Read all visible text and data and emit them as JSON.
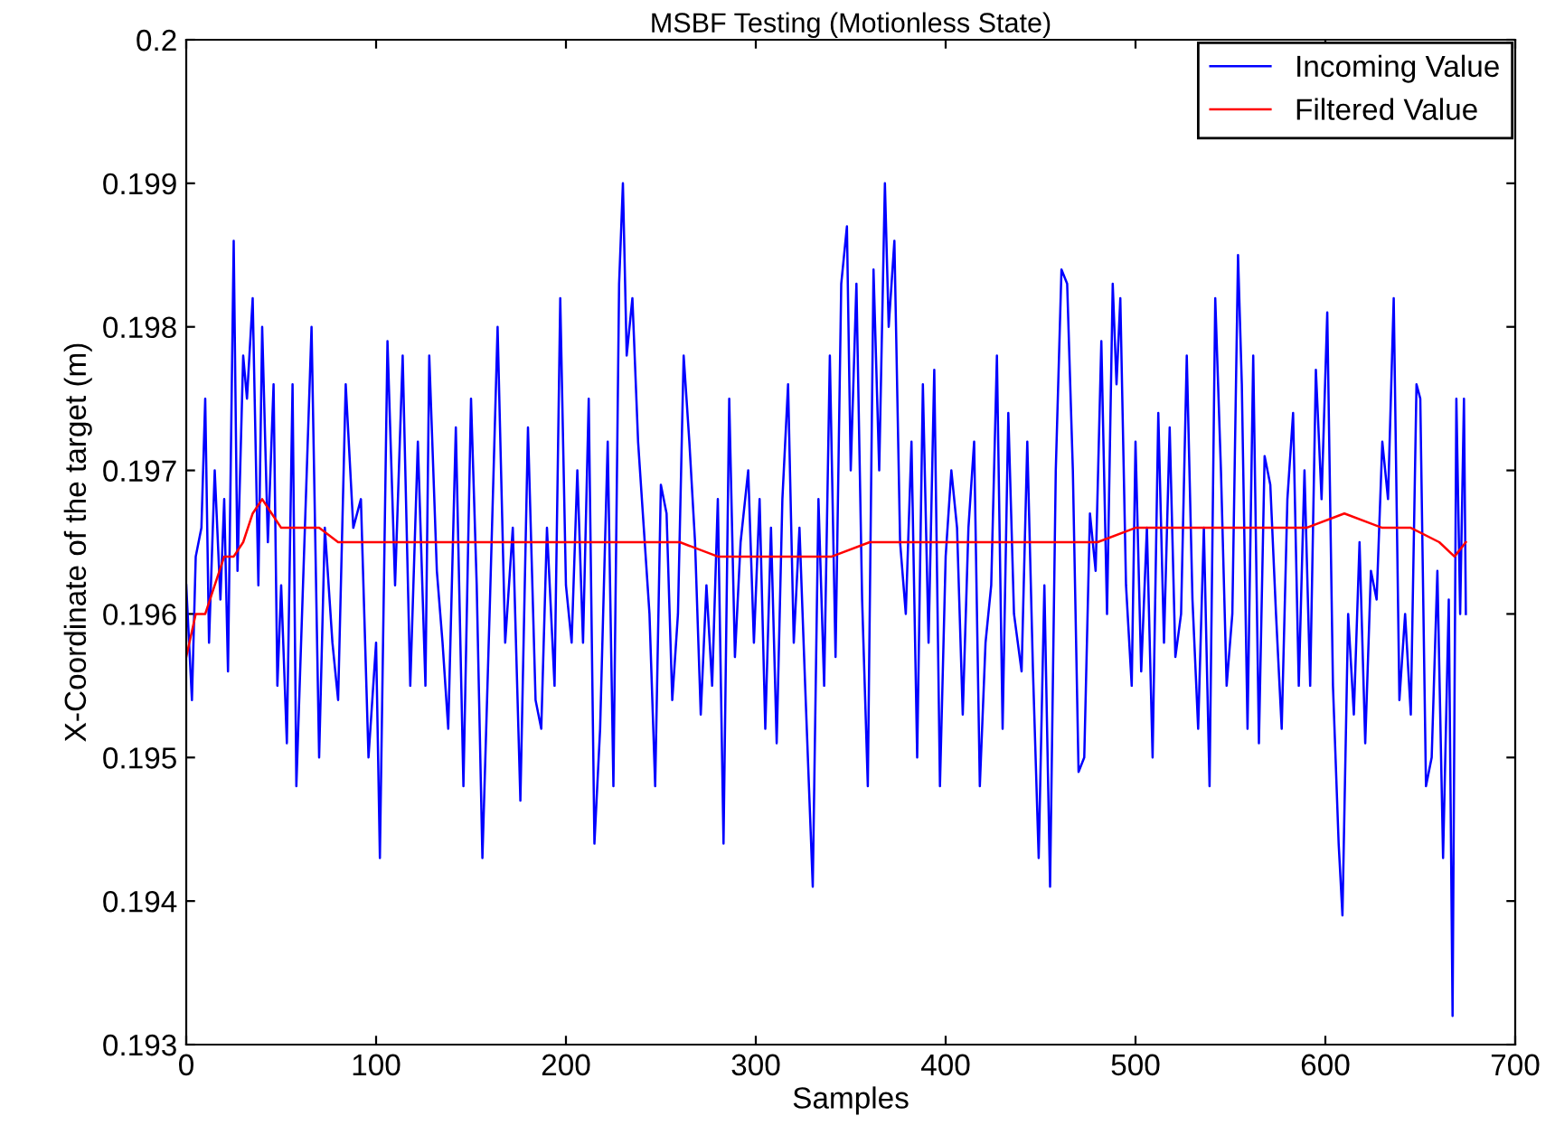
{
  "chart_data": {
    "type": "line",
    "title": "MSBF Testing (Motionless State)",
    "xlabel": "Samples",
    "ylabel": "X-Coordinate of the target (m)",
    "xlim": [
      0,
      700
    ],
    "xticks": [
      0,
      100,
      200,
      300,
      400,
      500,
      600,
      700
    ],
    "ylim": [
      0.193,
      0.2
    ],
    "yticks": [
      0.193,
      0.194,
      0.195,
      0.196,
      0.197,
      0.198,
      0.199,
      0.2
    ],
    "grid": false,
    "legend": "top right",
    "marker": "none",
    "line_style": "solid",
    "series": [
      {
        "name": "Incoming Value",
        "color": "#0000ff",
        "x": [
          0,
          3,
          5,
          8,
          10,
          12,
          15,
          18,
          20,
          22,
          25,
          27,
          30,
          32,
          35,
          38,
          40,
          43,
          46,
          48,
          50,
          53,
          56,
          58,
          62,
          66,
          70,
          73,
          77,
          80,
          84,
          88,
          92,
          96,
          100,
          102,
          106,
          110,
          114,
          118,
          122,
          126,
          128,
          132,
          135,
          138,
          142,
          146,
          150,
          153,
          156,
          160,
          164,
          168,
          172,
          176,
          180,
          184,
          187,
          190,
          194,
          197,
          200,
          203,
          206,
          209,
          212,
          215,
          218,
          222,
          225,
          228,
          230,
          232,
          235,
          238,
          241,
          244,
          247,
          250,
          253,
          256,
          259,
          262,
          265,
          268,
          271,
          274,
          277,
          280,
          283,
          286,
          289,
          292,
          296,
          299,
          302,
          305,
          308,
          311,
          314,
          317,
          320,
          323,
          326,
          330,
          333,
          336,
          339,
          342,
          345,
          348,
          350,
          353,
          356,
          359,
          362,
          365,
          368,
          370,
          373,
          376,
          379,
          382,
          385,
          388,
          391,
          394,
          397,
          400,
          403,
          406,
          409,
          412,
          415,
          418,
          421,
          424,
          427,
          430,
          433,
          436,
          440,
          443,
          446,
          449,
          452,
          455,
          458,
          461,
          464,
          467,
          470,
          473,
          476,
          479,
          482,
          485,
          488,
          490,
          492,
          495,
          498,
          500,
          503,
          506,
          509,
          512,
          515,
          518,
          521,
          524,
          527,
          530,
          533,
          536,
          539,
          542,
          545,
          548,
          551,
          554,
          556,
          559,
          562,
          565,
          568,
          571,
          574,
          577,
          580,
          583,
          586,
          589,
          592,
          595,
          598,
          601,
          604,
          607,
          609,
          612,
          615,
          618,
          621,
          624,
          627,
          630,
          633,
          636,
          639,
          642,
          645,
          648,
          650,
          653,
          656,
          659,
          662,
          665,
          667,
          669,
          671,
          673,
          674
        ],
        "values": [
          0.1962,
          0.1954,
          0.1964,
          0.1966,
          0.1975,
          0.1958,
          0.197,
          0.1961,
          0.1968,
          0.1956,
          0.1986,
          0.1963,
          0.1978,
          0.1975,
          0.1982,
          0.1962,
          0.198,
          0.1965,
          0.1976,
          0.1955,
          0.1962,
          0.1951,
          0.1976,
          0.1948,
          0.1964,
          0.198,
          0.195,
          0.1966,
          0.1958,
          0.1954,
          0.1976,
          0.1966,
          0.1968,
          0.195,
          0.1958,
          0.1943,
          0.1979,
          0.1962,
          0.1978,
          0.1955,
          0.1972,
          0.1955,
          0.1978,
          0.1963,
          0.1958,
          0.1952,
          0.1973,
          0.1948,
          0.1975,
          0.1962,
          0.1943,
          0.1961,
          0.198,
          0.1958,
          0.1966,
          0.1947,
          0.1973,
          0.1954,
          0.1952,
          0.1966,
          0.1955,
          0.1982,
          0.1962,
          0.1958,
          0.197,
          0.1958,
          0.1975,
          0.1944,
          0.1952,
          0.1972,
          0.1948,
          0.1983,
          0.199,
          0.1978,
          0.1982,
          0.1972,
          0.1966,
          0.196,
          0.1948,
          0.1969,
          0.1967,
          0.1954,
          0.196,
          0.1978,
          0.1972,
          0.1965,
          0.1953,
          0.1962,
          0.1955,
          0.1968,
          0.1944,
          0.1975,
          0.1957,
          0.1965,
          0.197,
          0.1958,
          0.1968,
          0.1952,
          0.1966,
          0.1951,
          0.1968,
          0.1976,
          0.1958,
          0.1966,
          0.1955,
          0.1941,
          0.1968,
          0.1955,
          0.1978,
          0.1957,
          0.1983,
          0.1987,
          0.197,
          0.1983,
          0.1961,
          0.1948,
          0.1984,
          0.197,
          0.199,
          0.198,
          0.1986,
          0.1965,
          0.196,
          0.1972,
          0.195,
          0.1976,
          0.1958,
          0.1977,
          0.1948,
          0.1964,
          0.197,
          0.1966,
          0.1953,
          0.1966,
          0.1972,
          0.1948,
          0.1958,
          0.1962,
          0.1978,
          0.1952,
          0.1974,
          0.196,
          0.1956,
          0.1972,
          0.1956,
          0.1943,
          0.1962,
          0.1941,
          0.197,
          0.1984,
          0.1983,
          0.197,
          0.1949,
          0.195,
          0.1967,
          0.1963,
          0.1979,
          0.196,
          0.1983,
          0.1976,
          0.1982,
          0.1962,
          0.1955,
          0.1972,
          0.1956,
          0.1966,
          0.195,
          0.1974,
          0.1958,
          0.1973,
          0.1957,
          0.196,
          0.1978,
          0.1961,
          0.1952,
          0.1966,
          0.1948,
          0.1982,
          0.197,
          0.1955,
          0.196,
          0.1985,
          0.1976,
          0.1952,
          0.1978,
          0.1951,
          0.1971,
          0.1969,
          0.196,
          0.1952,
          0.1968,
          0.1974,
          0.1955,
          0.197,
          0.1955,
          0.1977,
          0.1968,
          0.1981,
          0.1955,
          0.1944,
          0.1939,
          0.196,
          0.1953,
          0.1965,
          0.1951,
          0.1963,
          0.1961,
          0.1972,
          0.1968,
          0.1982,
          0.1954,
          0.196,
          0.1953,
          0.1976,
          0.1975,
          0.1948,
          0.195,
          0.1963,
          0.1943,
          0.1961,
          0.1932,
          0.1975,
          0.196,
          0.1975,
          0.196
        ]
      },
      {
        "name": "Filtered Value",
        "color": "#ff0000",
        "x": [
          0,
          5,
          10,
          15,
          20,
          25,
          30,
          35,
          40,
          45,
          50,
          60,
          70,
          80,
          100,
          120,
          140,
          160,
          180,
          200,
          230,
          260,
          280,
          300,
          320,
          340,
          360,
          380,
          400,
          420,
          440,
          460,
          480,
          500,
          530,
          560,
          590,
          610,
          630,
          645,
          660,
          668,
          674
        ],
        "values": [
          0.1957,
          0.196,
          0.196,
          0.1962,
          0.1964,
          0.1964,
          0.1965,
          0.1967,
          0.1968,
          0.1967,
          0.1966,
          0.1966,
          0.1966,
          0.1965,
          0.1965,
          0.1965,
          0.1965,
          0.1965,
          0.1965,
          0.1965,
          0.1965,
          0.1965,
          0.1964,
          0.1964,
          0.1964,
          0.1964,
          0.1965,
          0.1965,
          0.1965,
          0.1965,
          0.1965,
          0.1965,
          0.1965,
          0.1966,
          0.1966,
          0.1966,
          0.1966,
          0.1967,
          0.1966,
          0.1966,
          0.1965,
          0.1964,
          0.1965
        ]
      }
    ]
  }
}
